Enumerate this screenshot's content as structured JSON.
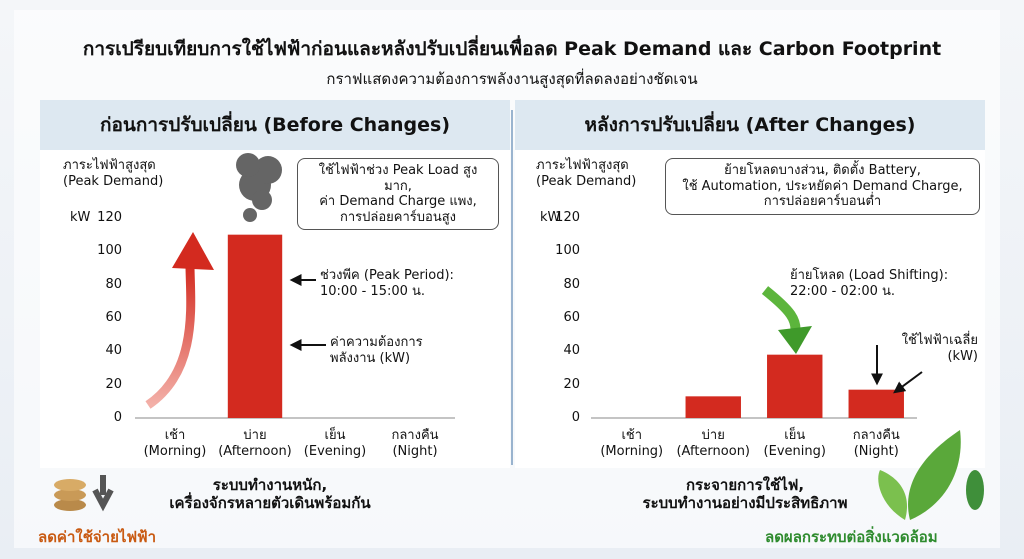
{
  "header": {
    "title": "การเปรียบเทียบการใช้ไฟฟ้าก่อนและหลังปรับเปลี่ยนเพื่อลด Peak Demand และ Carbon Footprint",
    "subtitle": "กราฟแสดงความต้องการพลังงานสูงสุดที่ลดลงอย่างชัดเจน"
  },
  "chart_data": [
    {
      "type": "bar",
      "title": "ก่อนการปรับเปลี่ยน (Before Changes)",
      "y_label": "ภาระไฟฟ้าสูงสุด\n(Peak Demand)",
      "y_unit": "kW",
      "categories": [
        "เช้า\n(Morning)",
        "บ่าย\n(Afternoon)",
        "เย็น\n(Evening)",
        "กลางคืน\n(Night)"
      ],
      "values": [
        null,
        110,
        null,
        null
      ],
      "color": "#d32a1f",
      "ylim": [
        0,
        120
      ],
      "yticks": [
        0,
        20,
        40,
        60,
        80,
        100,
        120
      ],
      "grid": false,
      "annotations": [
        "ใช้ไฟฟ้าช่วง Peak Load สูงมาก,\nค่า Demand Charge แพง,\nการปล่อยคาร์บอนสูง",
        "ช่วงพีค (Peak Period):\n10:00 - 15:00 น.",
        "ค่าความต้องการ\nพลังงาน (kW)"
      ],
      "caption": "ระบบทำงานหนัก,\nเครื่องจักรหลายตัวเดินพร้อมกัน"
    },
    {
      "type": "bar",
      "title": "หลังการปรับเปลี่ยน (After Changes)",
      "y_label": "ภาระไฟฟ้าสูงสุด\n(Peak Demand)",
      "y_unit": "kW",
      "categories": [
        "เช้า\n(Morning)",
        "บ่าย\n(Afternoon)",
        "เย็น\n(Evening)",
        "กลางคืน\n(Night)"
      ],
      "values": [
        null,
        13,
        38,
        17
      ],
      "color": "#d32a1f",
      "ylim": [
        0,
        120
      ],
      "yticks": [
        0,
        20,
        40,
        60,
        80,
        100,
        120
      ],
      "grid": false,
      "annotations": [
        "ย้ายโหลดบางส่วน, ติดตั้ง Battery,\nใช้ Automation, ประหยัดค่า Demand Charge,\nการปล่อยคาร์บอนต่ำ",
        "ย้ายโหลด (Load Shifting):\n22:00 - 02:00 น.",
        "ใช้ไฟฟ้าเฉลี่ย\n(kW)"
      ],
      "caption": "กระจายการใช้ไฟ,\nระบบทำงานอย่างมีประสิทธิภาพ"
    }
  ],
  "footer": {
    "left": "ลดค่าใช้จ่ายไฟฟ้า",
    "right": "ลดผลกระทบต่อสิ่งแวดล้อม"
  }
}
